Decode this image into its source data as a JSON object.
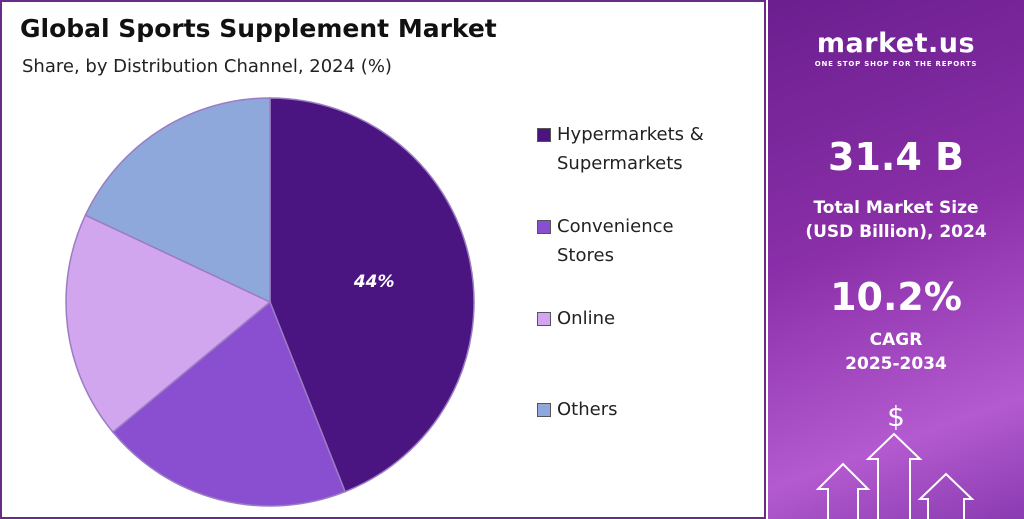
{
  "chart_data": {
    "type": "pie",
    "title": "Global Sports Supplement Market",
    "subtitle": "Share, by Distribution Channel, 2024 (%)",
    "categories": [
      "Hypermarkets & Supermarkets",
      "Convenience Stores",
      "Online",
      "Others"
    ],
    "values": [
      44,
      20,
      18,
      18
    ],
    "value_labels": [
      "44%",
      null,
      null,
      null
    ],
    "colors": [
      "#4a1580",
      "#8a4fd0",
      "#d2a6ef",
      "#8fa8dc"
    ]
  },
  "sidebar": {
    "brand": "market.us",
    "tagline": "ONE STOP SHOP FOR THE REPORTS",
    "market_size": "31.4 B",
    "market_size_label": "Total Market Size (USD Billion), 2024",
    "cagr": "10.2%",
    "cagr_label": "CAGR",
    "cagr_period": "2025-2034",
    "icon": "$"
  }
}
